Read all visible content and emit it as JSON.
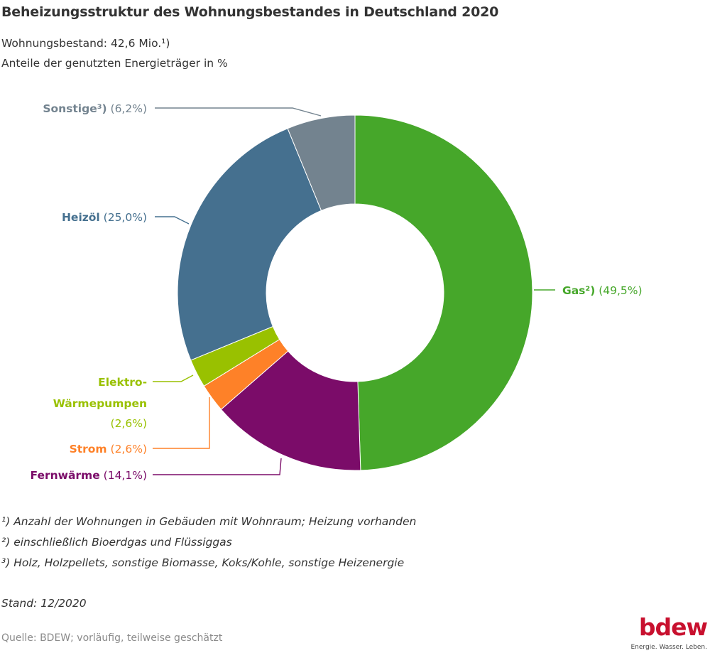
{
  "header": {
    "title": "Beheizungsstruktur des Wohnungsbestandes in Deutschland 2020",
    "subtitle1": "Wohnungsbestand: 42,6 Mio.¹)",
    "subtitle2": "Anteile der genutzten Energieträger in %"
  },
  "chart_data": {
    "type": "pie",
    "variant": "donut",
    "title": "Beheizungsstruktur des Wohnungsbestandes in Deutschland 2020",
    "unit": "%",
    "slices": [
      {
        "name": "Gas²)",
        "value": 49.5,
        "value_label": "(49,5%)",
        "color": "#46a72a"
      },
      {
        "name": "Fernwärme",
        "value": 14.1,
        "value_label": "(14,1%)",
        "color": "#7b0c69"
      },
      {
        "name": "Strom",
        "value": 2.6,
        "value_label": "(2,6%)",
        "color": "#fe8128"
      },
      {
        "name": "Elektro-Wärmepumpen",
        "name_lines": [
          "Elektro-",
          "Wärmepumpen"
        ],
        "value": 2.6,
        "value_label": "(2,6%)",
        "color": "#99c100"
      },
      {
        "name": "Heizöl",
        "value": 25.0,
        "value_label": "(25,0%)",
        "color": "#45708f"
      },
      {
        "name": "Sonstige³)",
        "value": 6.2,
        "value_label": "(6,2%)",
        "color": "#73838f"
      }
    ]
  },
  "footnotes": [
    "¹) Anzahl der Wohnungen in Gebäuden mit Wohnraum; Heizung vorhanden",
    "²) einschließlich Bioerdgas und Flüssiggas",
    "³) Holz, Holzpellets, sonstige Biomasse, Koks/Kohle, sonstige Heizenergie"
  ],
  "stand": "Stand: 12/2020",
  "source": "Quelle: BDEW; vorläufig, teilweise geschätzt",
  "logo": {
    "word": "bdew",
    "tagline": "Energie. Wasser. Leben.",
    "color": "#c8102e"
  }
}
